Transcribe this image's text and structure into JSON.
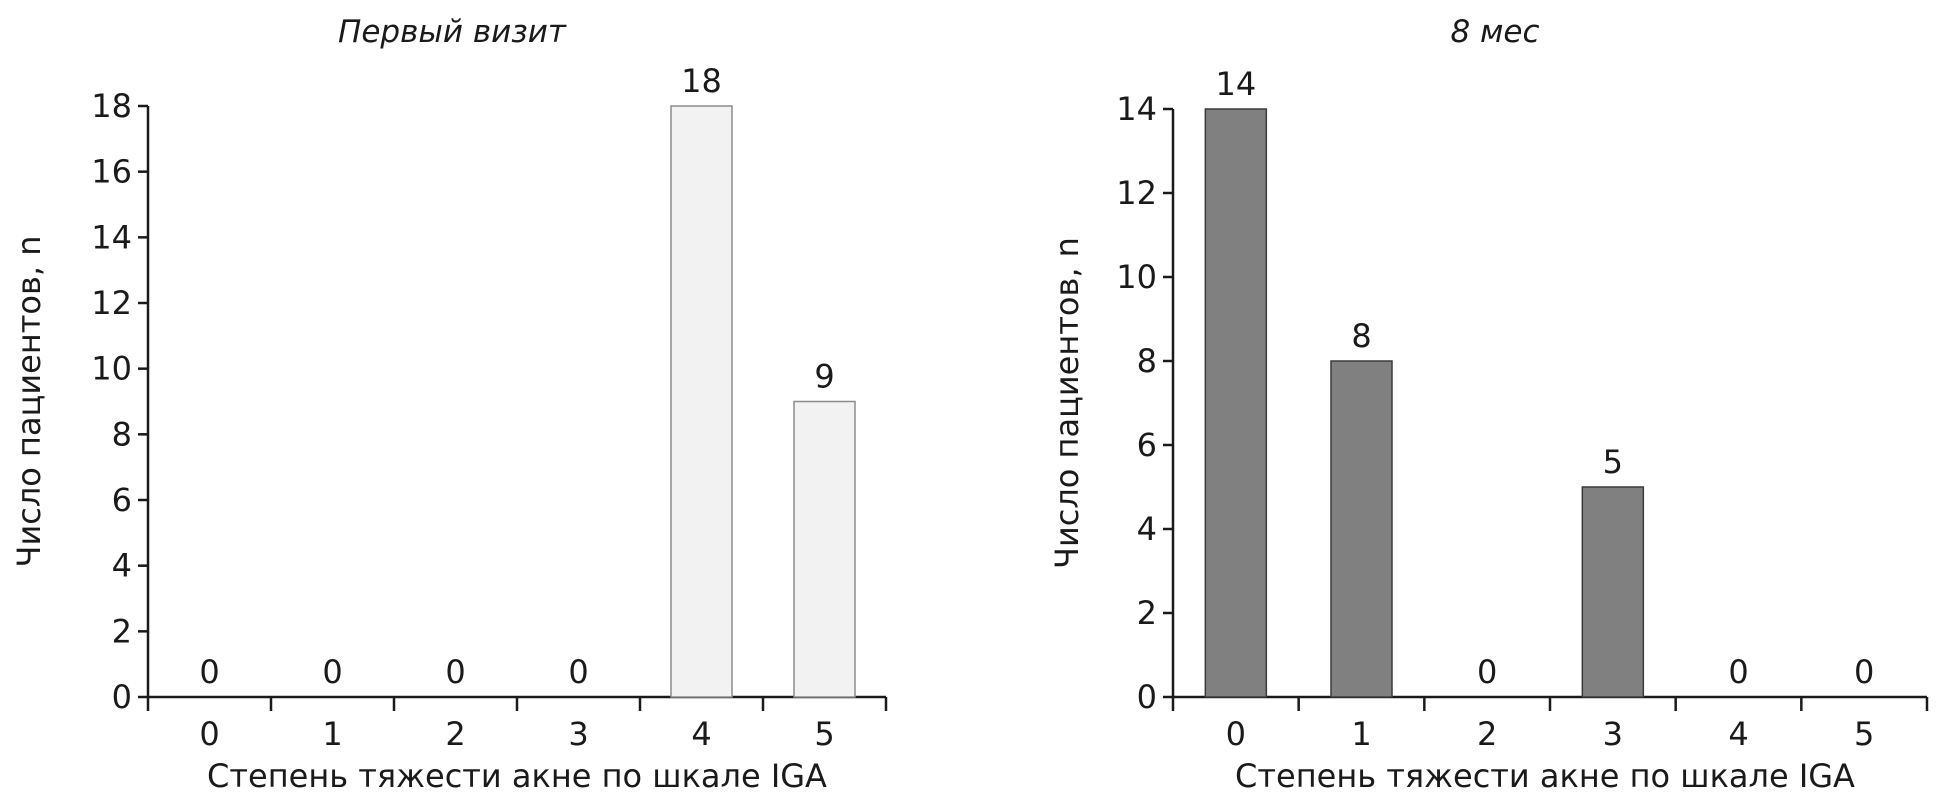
{
  "chart_data": [
    {
      "type": "bar",
      "title": "Первый визит",
      "categories": [
        "0",
        "1",
        "2",
        "3",
        "4",
        "5"
      ],
      "values": [
        0,
        0,
        0,
        0,
        18,
        9
      ],
      "value_labels": [
        "0",
        "0",
        "0",
        "0",
        "18",
        "9"
      ],
      "xlabel": "Степень тяжести акне по шкале IGA",
      "ylabel": "Число пациентов, n",
      "ylim": [
        0,
        18
      ],
      "yticks": [
        0,
        2,
        4,
        6,
        8,
        10,
        12,
        14,
        16,
        18
      ],
      "bar_color": "#f2f2f2",
      "bar_stroke": "#8c8c8c",
      "grid": false,
      "legend": "none"
    },
    {
      "type": "bar",
      "title": "8 мес",
      "categories": [
        "0",
        "1",
        "2",
        "3",
        "4",
        "5"
      ],
      "values": [
        14,
        8,
        0,
        5,
        0,
        0
      ],
      "value_labels": [
        "14",
        "8",
        "0",
        "5",
        "0",
        "0"
      ],
      "xlabel": "Степень тяжести акне по шкале IGA",
      "ylabel": "Число пациентов, n",
      "ylim": [
        0,
        14
      ],
      "yticks": [
        0,
        2,
        4,
        6,
        8,
        10,
        12,
        14
      ],
      "bar_color": "#808080",
      "bar_stroke": "#3a3a3a",
      "grid": false,
      "legend": "none"
    }
  ]
}
